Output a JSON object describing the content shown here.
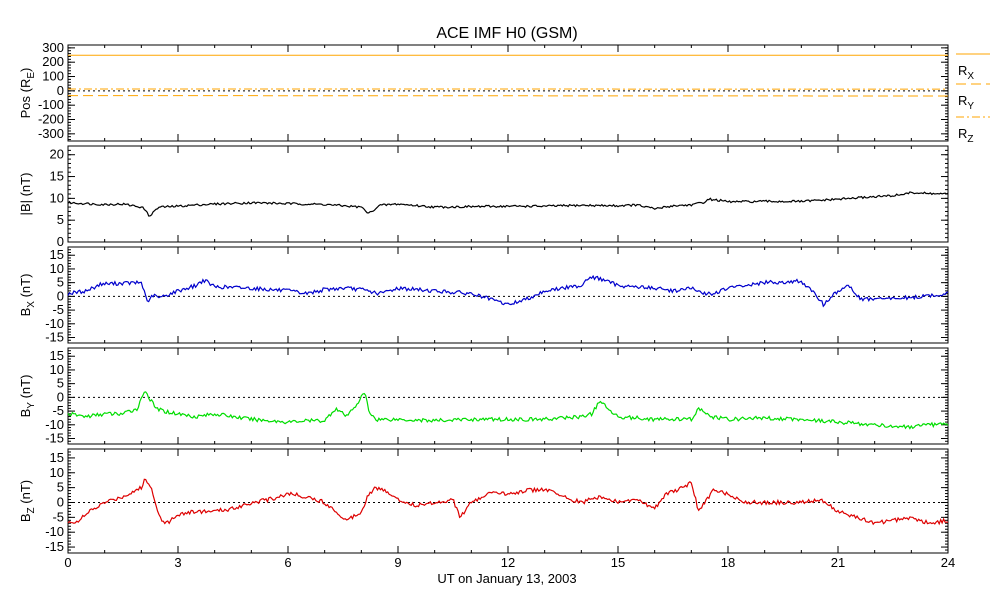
{
  "chart_data": {
    "type": "line",
    "title": "ACE IMF H0 (GSM)",
    "xlabel": "UT on January 13, 2003",
    "xlim": [
      0,
      24
    ],
    "x_ticks": [
      "0",
      "3",
      "6",
      "9",
      "12",
      "15",
      "18",
      "21",
      "24"
    ],
    "panels": [
      {
        "name": "position",
        "ylabel_main": "Pos (R",
        "ylabel_sub": "E",
        "ylabel_end": ")",
        "ylim": [
          -350,
          320
        ],
        "y_ticks": [
          "300",
          "200",
          "100",
          "0",
          "-100",
          "-200",
          "-300"
        ],
        "y_tick_values": [
          300,
          200,
          100,
          0,
          -100,
          -200,
          -300
        ],
        "zero_line": true,
        "series": [
          {
            "name": "RX",
            "label_main": "R",
            "label_sub": "X",
            "color": "#ffa500",
            "style": "solid",
            "x": [
              0,
              24
            ],
            "values": [
              249,
              249
            ]
          },
          {
            "name": "RY",
            "label_main": "R",
            "label_sub": "Y",
            "color": "#ffa500",
            "style": "dashed",
            "x": [
              0,
              24
            ],
            "values": [
              -33,
              -36
            ]
          },
          {
            "name": "RZ",
            "label_main": "R",
            "label_sub": "Z",
            "color": "#ffa500",
            "style": "dashdot",
            "x": [
              0,
              24
            ],
            "values": [
              13,
              12
            ]
          }
        ]
      },
      {
        "name": "btotal",
        "ylabel_main": "|B| (nT)",
        "ylabel_sub": "",
        "ylabel_end": "",
        "ylim": [
          0,
          22
        ],
        "y_ticks": [
          "20",
          "15",
          "10",
          "5",
          "0"
        ],
        "y_tick_values": [
          20,
          15,
          10,
          5,
          0
        ],
        "zero_line": false,
        "series": [
          {
            "name": "|B|",
            "color": "#000000",
            "style": "solid",
            "x": [
              0,
              0.5,
              1,
              1.5,
              2,
              2.1,
              2.2,
              2.3,
              2.4,
              2.5,
              3,
              3.5,
              4,
              5,
              6,
              7,
              8,
              8.2,
              8.5,
              9,
              10,
              11,
              12,
              13,
              14,
              15,
              15.5,
              16,
              16.5,
              17,
              17.3,
              17.5,
              17.8,
              18,
              19,
              20,
              21,
              22,
              22.5,
              23,
              23.5,
              24
            ],
            "values": [
              9,
              8.8,
              8.6,
              8.7,
              8,
              7.5,
              6,
              6.5,
              7.5,
              8,
              8.2,
              8.5,
              8.7,
              9,
              8.8,
              8.6,
              8,
              6.5,
              8.4,
              8.7,
              8,
              8.1,
              8.2,
              8.2,
              8.4,
              8.3,
              8.5,
              7.6,
              8.3,
              8.5,
              9,
              9.8,
              9.5,
              9.2,
              9.3,
              9.3,
              9.8,
              10.4,
              10.6,
              11.3,
              11.1,
              11
            ]
          }
        ]
      },
      {
        "name": "bx",
        "ylabel_main": "B",
        "ylabel_sub": "X",
        "ylabel_end": " (nT)",
        "ylim": [
          -17,
          18
        ],
        "y_ticks": [
          "15",
          "10",
          "5",
          "0",
          "-5",
          "-10",
          "-15"
        ],
        "y_tick_values": [
          15,
          10,
          5,
          0,
          -5,
          -10,
          -15
        ],
        "zero_line": true,
        "series": [
          {
            "name": "BX",
            "color": "#0000cc",
            "style": "solid",
            "x": [
              0,
              0.5,
              0.9,
              1.5,
              2,
              2.1,
              2.2,
              2.3,
              2.5,
              3,
              3.5,
              3.7,
              4,
              5,
              6,
              6.5,
              7,
              7.5,
              8,
              8.5,
              9,
              10,
              11,
              11.5,
              12,
              12.5,
              13,
              13.5,
              14,
              14.2,
              14.5,
              15,
              16,
              16.5,
              17,
              17.3,
              17.6,
              18,
              18.5,
              19,
              20,
              20.5,
              20.6,
              21,
              21.3,
              21.6,
              22,
              23,
              24
            ],
            "values": [
              1,
              2,
              4.5,
              4.8,
              5,
              1,
              -2.5,
              0.5,
              -0.5,
              2,
              4,
              6,
              3.5,
              3,
              2,
              1,
              2.5,
              3,
              2.5,
              1,
              3,
              2,
              1,
              -1,
              -3,
              -1,
              2,
              3,
              4,
              7,
              6.5,
              4,
              3,
              2,
              3,
              1,
              1,
              3,
              4,
              5,
              5.5,
              -1,
              -3,
              2,
              4,
              -1,
              -1,
              -0.5,
              1
            ]
          }
        ]
      },
      {
        "name": "by",
        "ylabel_main": "B",
        "ylabel_sub": "Y",
        "ylabel_end": " (nT)",
        "ylim": [
          -17,
          18
        ],
        "y_ticks": [
          "15",
          "10",
          "5",
          "0",
          "-5",
          "-10",
          "-15"
        ],
        "y_tick_values": [
          15,
          10,
          5,
          0,
          -5,
          -10,
          -15
        ],
        "zero_line": true,
        "series": [
          {
            "name": "BY",
            "color": "#00dd00",
            "style": "solid",
            "x": [
              0,
              0.5,
              1,
              1.5,
              1.9,
              2.1,
              2.2,
              2.4,
              2.6,
              3,
              3.5,
              4,
              5,
              6,
              6.5,
              7,
              7.3,
              7.6,
              7.9,
              8.1,
              8.2,
              8.4,
              9,
              10,
              11,
              12,
              13,
              14,
              14.3,
              14.5,
              14.7,
              15,
              16,
              17,
              17.2,
              17.5,
              18,
              19,
              20,
              21,
              22,
              23,
              23.5,
              24
            ],
            "values": [
              -6,
              -7,
              -6,
              -6,
              -4,
              3,
              0,
              -4,
              -5,
              -6,
              -7,
              -6,
              -8,
              -9,
              -8.5,
              -8.5,
              -4,
              -7,
              -2,
              2,
              -5,
              -8,
              -8,
              -8.5,
              -8,
              -8,
              -8,
              -7,
              -6,
              -1,
              -4,
              -7,
              -8,
              -8,
              -4,
              -7,
              -8,
              -7.5,
              -8,
              -9,
              -10,
              -11,
              -10,
              -10
            ]
          }
        ]
      },
      {
        "name": "bz",
        "ylabel_main": "B",
        "ylabel_sub": "Z",
        "ylabel_end": " (nT)",
        "ylim": [
          -17,
          18
        ],
        "y_ticks": [
          "15",
          "10",
          "5",
          "0",
          "-5",
          "-10",
          "-15"
        ],
        "y_tick_values": [
          15,
          10,
          5,
          0,
          -5,
          -10,
          -15
        ],
        "zero_line": true,
        "series": [
          {
            "name": "BZ",
            "color": "#dd0000",
            "style": "solid",
            "x": [
              0,
              0.3,
              0.6,
              1,
              1.5,
              2,
              2.1,
              2.3,
              2.5,
              2.7,
              3,
              3.5,
              4,
              4.5,
              5,
              5.5,
              6,
              6.5,
              7,
              7.4,
              7.6,
              8,
              8.2,
              8.4,
              8.8,
              9,
              9.5,
              10,
              10.5,
              10.7,
              11,
              11.5,
              12,
              12.5,
              13,
              13.5,
              14,
              14.5,
              15,
              15.5,
              16,
              16.3,
              16.8,
              17,
              17.2,
              17.6,
              18,
              18.5,
              19,
              20,
              20.5,
              21,
              21.5,
              22,
              23,
              23.5,
              24
            ],
            "values": [
              -7,
              -6,
              -3,
              0,
              2,
              5,
              8,
              4,
              -5,
              -7,
              -4,
              -3,
              -3,
              -2,
              0,
              1,
              3,
              2,
              0,
              -4,
              -6,
              -3,
              3,
              5,
              3,
              1,
              -1,
              0,
              1,
              -5,
              0,
              3,
              3,
              4,
              4.5,
              2,
              0,
              2,
              0,
              1,
              -2,
              3,
              5,
              7,
              -3,
              4,
              3,
              0,
              0,
              0,
              1,
              -3,
              -5,
              -7,
              -5,
              -7,
              -6
            ]
          }
        ]
      }
    ]
  }
}
